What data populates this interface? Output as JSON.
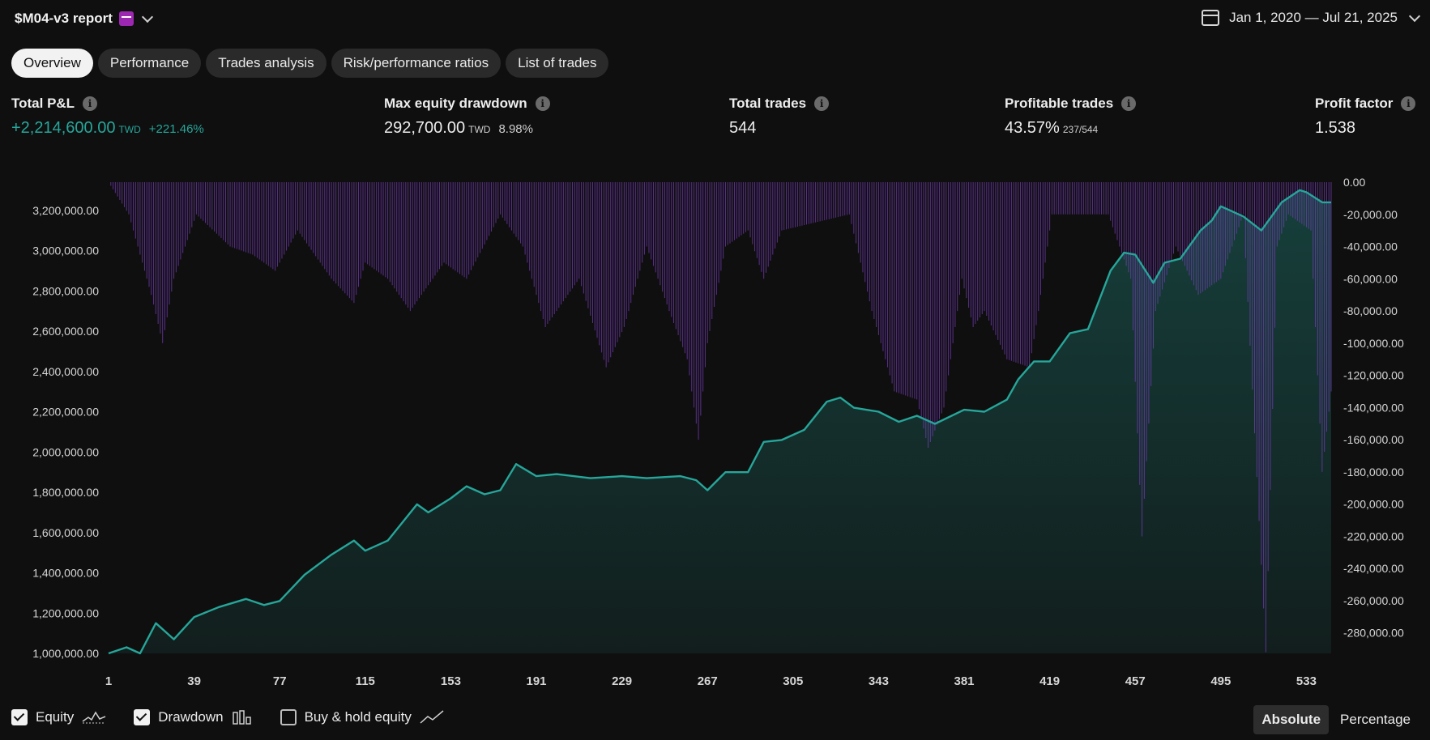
{
  "header": {
    "title": "$M04-v3 report",
    "date_range": "Jan 1, 2020 — Jul 21, 2025"
  },
  "tabs": [
    "Overview",
    "Performance",
    "Trades analysis",
    "Risk/performance ratios",
    "List of trades"
  ],
  "active_tab": "Overview",
  "metrics": {
    "total_pnl": {
      "label": "Total P&L",
      "value": "+2,214,600.00",
      "unit": "TWD",
      "pct": "+221.46%"
    },
    "max_drawdown": {
      "label": "Max equity drawdown",
      "value": "292,700.00",
      "unit": "TWD",
      "pct": "8.98%"
    },
    "total_trades": {
      "label": "Total trades",
      "value": "544"
    },
    "profitable_trades": {
      "label": "Profitable trades",
      "value": "43.57%",
      "ratio": "237/544"
    },
    "profit_factor": {
      "label": "Profit factor",
      "value": "1.538"
    }
  },
  "legend": {
    "equity": {
      "label": "Equity",
      "checked": true
    },
    "drawdown": {
      "label": "Drawdown",
      "checked": true
    },
    "buy_hold": {
      "label": "Buy & hold equity",
      "checked": false
    }
  },
  "mode": {
    "absolute": "Absolute",
    "percentage": "Percentage",
    "active": "Absolute"
  },
  "colors": {
    "equity": "#26a69a",
    "drawdown": "#7b3fbf",
    "background": "#0f0f0f"
  },
  "chart_data": {
    "type": "area",
    "x_ticks": [
      1,
      39,
      77,
      115,
      153,
      191,
      229,
      267,
      305,
      343,
      381,
      419,
      457,
      495,
      533
    ],
    "ylim": [
      1000000,
      3340000
    ],
    "y_ticks": [
      1000000,
      1200000,
      1400000,
      1600000,
      1800000,
      2000000,
      2200000,
      2400000,
      2600000,
      2800000,
      3000000,
      3200000
    ],
    "y_tick_labels": [
      "1,000,000.00",
      "1,200,000.00",
      "1,400,000.00",
      "1,600,000.00",
      "1,800,000.00",
      "2,000,000.00",
      "2,200,000.00",
      "2,400,000.00",
      "2,600,000.00",
      "2,800,000.00",
      "3,000,000.00",
      "3,200,000.00"
    ],
    "y2lim": [
      0,
      -292700
    ],
    "y2_ticks": [
      0,
      -20000,
      -40000,
      -60000,
      -80000,
      -100000,
      -120000,
      -140000,
      -160000,
      -180000,
      -200000,
      -220000,
      -240000,
      -260000,
      -280000
    ],
    "y2_tick_labels": [
      "0.00",
      "-20,000.00",
      "-40,000.00",
      "-60,000.00",
      "-80,000.00",
      "-100,000.00",
      "-120,000.00",
      "-140,000.00",
      "-160,000.00",
      "-180,000.00",
      "-200,000.00",
      "-220,000.00",
      "-240,000.00",
      "-260,000.00",
      "-280,000.00"
    ],
    "xlim": [
      1,
      544
    ],
    "series": [
      {
        "name": "Equity",
        "x": [
          1,
          9,
          15,
          22,
          30,
          39,
          50,
          62,
          70,
          77,
          88,
          100,
          110,
          115,
          125,
          138,
          143,
          153,
          160,
          168,
          175,
          182,
          191,
          200,
          215,
          229,
          240,
          255,
          262,
          267,
          275,
          285,
          292,
          300,
          310,
          320,
          326,
          332,
          343,
          352,
          360,
          368,
          381,
          390,
          400,
          405,
          412,
          419,
          428,
          436,
          446,
          452,
          457,
          465,
          470,
          477,
          486,
          491,
          495,
          505,
          513,
          522,
          530,
          533,
          540,
          544
        ],
        "values": [
          1000000,
          1030000,
          1000000,
          1150000,
          1070000,
          1180000,
          1230000,
          1270000,
          1240000,
          1260000,
          1390000,
          1490000,
          1560000,
          1510000,
          1560000,
          1740000,
          1700000,
          1770000,
          1830000,
          1790000,
          1810000,
          1940000,
          1880000,
          1890000,
          1870000,
          1880000,
          1870000,
          1880000,
          1860000,
          1810000,
          1900000,
          1900000,
          2050000,
          2060000,
          2110000,
          2250000,
          2270000,
          2220000,
          2200000,
          2150000,
          2180000,
          2140000,
          2210000,
          2200000,
          2260000,
          2360000,
          2450000,
          2450000,
          2590000,
          2610000,
          2900000,
          2990000,
          2980000,
          2840000,
          2940000,
          2960000,
          3100000,
          3150000,
          3220000,
          3170000,
          3100000,
          3240000,
          3300000,
          3290000,
          3240000,
          3240000
        ]
      },
      {
        "name": "Drawdown",
        "x": [
          1,
          10,
          20,
          25,
          30,
          40,
          55,
          65,
          75,
          85,
          100,
          110,
          115,
          125,
          135,
          150,
          160,
          175,
          185,
          195,
          210,
          222,
          230,
          240,
          250,
          258,
          263,
          267,
          275,
          285,
          292,
          300,
          330,
          340,
          350,
          360,
          365,
          372,
          380,
          385,
          390,
          400,
          410,
          414,
          420,
          445,
          455,
          460,
          466,
          475,
          485,
          495,
          505,
          515,
          520,
          525,
          535,
          540,
          544
        ],
        "values": [
          0,
          -20000,
          -70000,
          -100000,
          -60000,
          -20000,
          -40000,
          -45000,
          -55000,
          -30000,
          -60000,
          -75000,
          -50000,
          -60000,
          -80000,
          -50000,
          -60000,
          -20000,
          -40000,
          -90000,
          -60000,
          -115000,
          -90000,
          -40000,
          -80000,
          -110000,
          -160000,
          -100000,
          -40000,
          -30000,
          -60000,
          -30000,
          -20000,
          -80000,
          -130000,
          -135000,
          -165000,
          -140000,
          -60000,
          -90000,
          -80000,
          -110000,
          -115000,
          -80000,
          -20000,
          -20000,
          -60000,
          -220000,
          -80000,
          -40000,
          -70000,
          -60000,
          -20000,
          -292000,
          -40000,
          -20000,
          -30000,
          -180000,
          -130000
        ]
      }
    ]
  }
}
